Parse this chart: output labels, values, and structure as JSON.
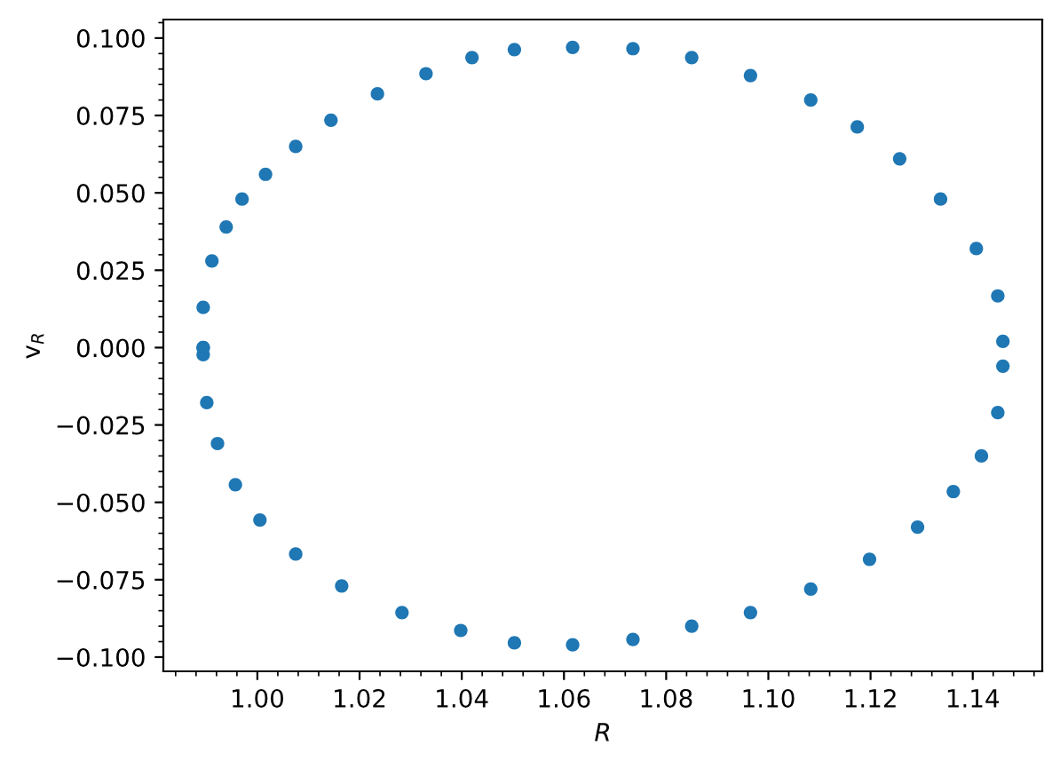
{
  "chart_data": {
    "type": "scatter",
    "xlabel": "R",
    "ylabel": "v$_{R}$",
    "xlim": [
      0.9816,
      1.1536
    ],
    "ylim": [
      -0.1046,
      0.106
    ],
    "xticks": [
      {
        "value": 1.0,
        "label": "1.00"
      },
      {
        "value": 1.02,
        "label": "1.02"
      },
      {
        "value": 1.04,
        "label": "1.04"
      },
      {
        "value": 1.06,
        "label": "1.06"
      },
      {
        "value": 1.08,
        "label": "1.08"
      },
      {
        "value": 1.1,
        "label": "1.10"
      },
      {
        "value": 1.12,
        "label": "1.12"
      },
      {
        "value": 1.14,
        "label": "1.14"
      }
    ],
    "yticks": [
      {
        "value": -0.1,
        "label": "−0.100"
      },
      {
        "value": -0.075,
        "label": "−0.075"
      },
      {
        "value": -0.05,
        "label": "−0.050"
      },
      {
        "value": -0.025,
        "label": "−0.025"
      },
      {
        "value": 0.0,
        "label": "0.000"
      },
      {
        "value": 0.025,
        "label": "0.025"
      },
      {
        "value": 0.05,
        "label": "0.050"
      },
      {
        "value": 0.075,
        "label": "0.075"
      },
      {
        "value": 0.1,
        "label": "0.100"
      }
    ],
    "grid": false,
    "marker": "circle",
    "series": [
      {
        "color": "#1f77b4",
        "x": [
          0.9894,
          0.9894,
          0.9911,
          0.9939,
          0.997,
          1.0016,
          1.0075,
          1.0144,
          1.0235,
          1.033,
          1.042,
          1.0503,
          1.0617,
          1.0735,
          1.085,
          1.0965,
          1.1083,
          1.1174,
          1.1257,
          1.1337,
          1.1407,
          1.1449,
          1.1459,
          1.1459,
          1.1449,
          1.1417,
          1.1362,
          1.1292,
          1.1198,
          1.1083,
          1.0965,
          1.085,
          1.0735,
          1.0617,
          1.0503,
          1.0398,
          1.0283,
          1.0165,
          1.0075,
          1.0005,
          0.9957,
          0.9922,
          0.9901,
          0.9894,
          0.9894
        ],
        "values": [
          0.0,
          0.013,
          0.028,
          0.039,
          0.048,
          0.056,
          0.065,
          0.0735,
          0.082,
          0.0885,
          0.0937,
          0.0963,
          0.097,
          0.0966,
          0.0937,
          0.0879,
          0.08,
          0.0713,
          0.061,
          0.048,
          0.032,
          0.0167,
          0.002,
          -0.006,
          -0.021,
          -0.035,
          -0.0465,
          -0.058,
          -0.0684,
          -0.078,
          -0.0856,
          -0.09,
          -0.0943,
          -0.096,
          -0.0954,
          -0.0914,
          -0.0856,
          -0.077,
          -0.0667,
          -0.0557,
          -0.0443,
          -0.031,
          -0.0178,
          -0.0023,
          0.0
        ]
      }
    ]
  }
}
